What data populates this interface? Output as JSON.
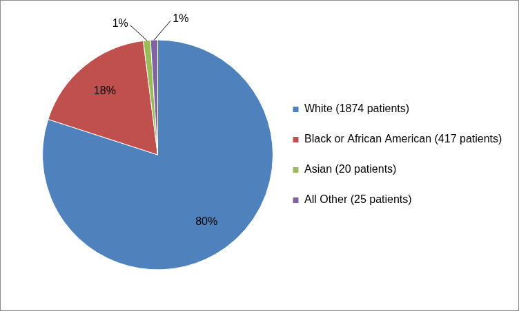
{
  "chart_data": {
    "type": "pie",
    "categories": [
      "White (1874 patients)",
      "Black or African American (417 patients)",
      "Asian (20 patients)",
      "All Other (25 patients)"
    ],
    "values": [
      80,
      18,
      1,
      1
    ],
    "value_labels": [
      "80%",
      "18%",
      "1%",
      "1%"
    ],
    "colors": [
      "#4f81bd",
      "#c0504d",
      "#9bbb59",
      "#8064a2"
    ],
    "data_labels": true,
    "legend": "right"
  }
}
